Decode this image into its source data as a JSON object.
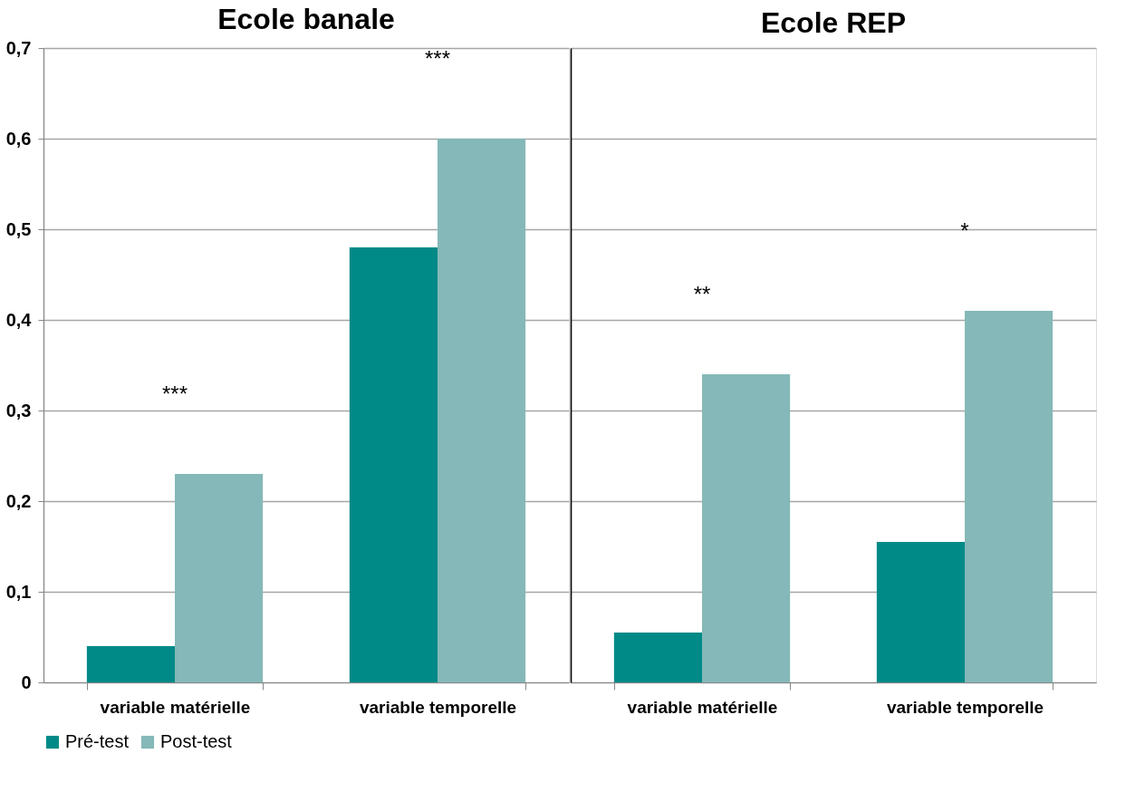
{
  "chart_data": [
    {
      "type": "bar",
      "title": "Ecole banale",
      "categories": [
        "variable matérielle",
        "variable temporelle"
      ],
      "series": [
        {
          "name": "Pré-test",
          "color": "#008a87",
          "values": [
            0.04,
            0.48
          ]
        },
        {
          "name": "Post-test",
          "color": "#85b8b8",
          "values": [
            0.23,
            0.6
          ]
        }
      ],
      "ylim": [
        0,
        0.7
      ],
      "yticks": [
        {
          "value": 0,
          "label": "0"
        },
        {
          "value": 0.1,
          "label": "0,1"
        },
        {
          "value": 0.2,
          "label": "0,2"
        },
        {
          "value": 0.3,
          "label": "0,3"
        },
        {
          "value": 0.4,
          "label": "0,4"
        },
        {
          "value": 0.5,
          "label": "0,5"
        },
        {
          "value": 0.6,
          "label": "0,6"
        },
        {
          "value": 0.7,
          "label": "0,7"
        }
      ],
      "grid": "y",
      "legend": "bottom",
      "annotations": [
        "***",
        "***"
      ]
    },
    {
      "type": "bar",
      "title": "Ecole REP",
      "categories": [
        "variable matérielle",
        "variable temporelle"
      ],
      "series": [
        {
          "name": "Pré-test",
          "color": "#008a87",
          "values": [
            0.055,
            0.155
          ]
        },
        {
          "name": "Post-test",
          "color": "#85b8b8",
          "values": [
            0.34,
            0.41
          ]
        }
      ],
      "ylim": [
        0,
        0.7
      ],
      "yticks": [
        {
          "value": 0,
          "label": null
        },
        {
          "value": 0.1,
          "label": null
        },
        {
          "value": 0.2,
          "label": null
        },
        {
          "value": 0.3,
          "label": null
        },
        {
          "value": 0.4,
          "label": null
        },
        {
          "value": 0.5,
          "label": null
        },
        {
          "value": 0.6,
          "label": null
        },
        {
          "value": 0.7,
          "label": null
        }
      ],
      "grid": "y",
      "legend": "bottom",
      "tick_labels": "x",
      "annotations": [
        "**",
        "*"
      ]
    }
  ]
}
